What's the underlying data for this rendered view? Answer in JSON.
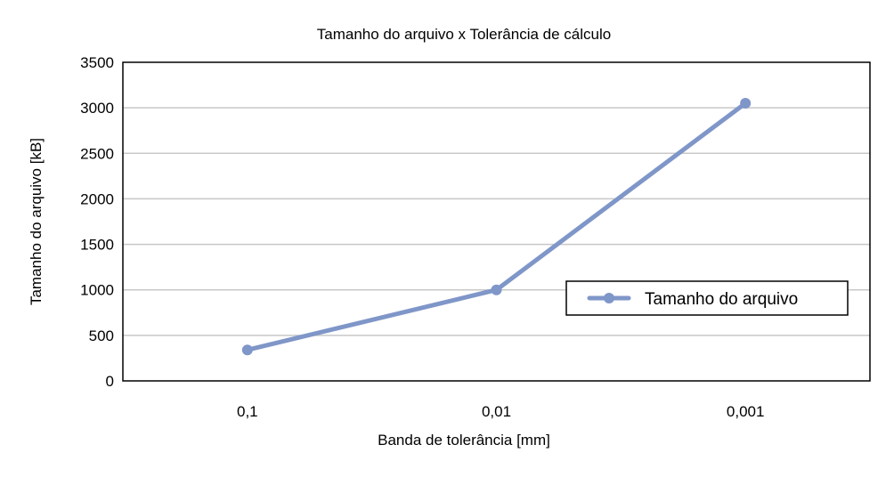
{
  "chart_data": {
    "type": "line",
    "title": "Tamanho do arquivo x Tolerância de cálculo",
    "xlabel": "Banda de tolerância [mm]",
    "ylabel": "Tamanho do arquivo [kB]",
    "categories": [
      "0,1",
      "0,01",
      "0,001"
    ],
    "series": [
      {
        "name": "Tamanho do arquivo",
        "values": [
          340,
          1000,
          3050
        ],
        "color": "#7f96c8"
      }
    ],
    "ylim": [
      0,
      3500
    ],
    "yticks": [
      0,
      500,
      1000,
      1500,
      2000,
      2500,
      3000,
      3500
    ],
    "ytick_labels": [
      "0",
      "500",
      "1000",
      "1500",
      "2000",
      "2500",
      "3000",
      "3500"
    ],
    "grid": true,
    "legend_position": "right"
  }
}
